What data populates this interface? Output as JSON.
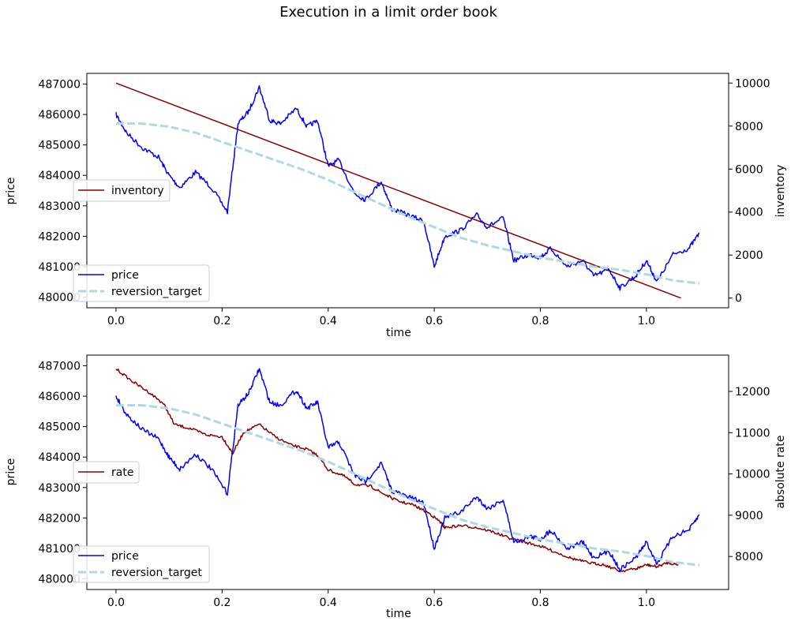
{
  "figure": {
    "suptitle": "Execution in a limit order book"
  },
  "chart_data": [
    {
      "type": "line",
      "xlabel": "time",
      "ylabel_left": "price",
      "ylabel_right": "inventory",
      "xlim": [
        -0.055,
        1.155
      ],
      "xticks": [
        "0.0",
        "0.2",
        "0.4",
        "0.6",
        "0.8",
        "1.0"
      ],
      "left_ylim": [
        479650,
        487350
      ],
      "left_yticks": [
        "480000",
        "481000",
        "482000",
        "483000",
        "484000",
        "485000",
        "486000",
        "487000"
      ],
      "right_ylim": [
        -450,
        10450
      ],
      "right_yticks": [
        "0",
        "2000",
        "4000",
        "6000",
        "8000",
        "10000"
      ],
      "legend_left": [
        "price",
        "reversion_target"
      ],
      "legend_right": [
        "inventory"
      ],
      "legend_left_loc": "lower left",
      "legend_right_loc": "center left",
      "colors": {
        "price": "#0000ff",
        "reversion_target": "#add8e6",
        "inventory": "#8b0000"
      },
      "series": [
        {
          "name": "price",
          "axis": "left",
          "x": [
            0.0,
            0.02,
            0.05,
            0.08,
            0.1,
            0.12,
            0.15,
            0.18,
            0.21,
            0.23,
            0.25,
            0.27,
            0.29,
            0.31,
            0.34,
            0.36,
            0.38,
            0.4,
            0.42,
            0.45,
            0.47,
            0.5,
            0.52,
            0.55,
            0.58,
            0.6,
            0.62,
            0.65,
            0.68,
            0.7,
            0.73,
            0.75,
            0.78,
            0.8,
            0.82,
            0.85,
            0.88,
            0.9,
            0.93,
            0.95,
            0.98,
            1.0,
            1.02,
            1.05,
            1.08,
            1.1
          ],
          "y": [
            486000,
            485400,
            484900,
            484600,
            484000,
            483600,
            484100,
            483600,
            482800,
            485700,
            486100,
            486900,
            485800,
            485700,
            486200,
            485600,
            485800,
            484300,
            484500,
            483400,
            483200,
            483800,
            482900,
            482700,
            482500,
            481000,
            482000,
            482200,
            482700,
            482300,
            482600,
            481200,
            481400,
            481300,
            481600,
            481000,
            481200,
            480700,
            480900,
            480300,
            480700,
            481200,
            480500,
            481400,
            481600,
            482100
          ]
        },
        {
          "name": "reversion_target",
          "axis": "left",
          "x": [
            0.0,
            0.05,
            0.1,
            0.15,
            0.2,
            0.25,
            0.3,
            0.35,
            0.4,
            0.45,
            0.5,
            0.55,
            0.6,
            0.65,
            0.7,
            0.75,
            0.8,
            0.85,
            0.9,
            0.95,
            1.0,
            1.05,
            1.1
          ],
          "y": [
            485700,
            485700,
            485600,
            485400,
            485100,
            484800,
            484500,
            484200,
            483850,
            483450,
            483050,
            482650,
            482300,
            481950,
            481700,
            481500,
            481300,
            481150,
            481000,
            480900,
            480750,
            480550,
            480450
          ]
        },
        {
          "name": "inventory",
          "axis": "right",
          "x": [
            0.0,
            1.065
          ],
          "y": [
            10000,
            0
          ]
        }
      ]
    },
    {
      "type": "line",
      "xlabel": "time",
      "ylabel_left": "price",
      "ylabel_right": "absolute rate",
      "xlim": [
        -0.055,
        1.155
      ],
      "xticks": [
        "0.0",
        "0.2",
        "0.4",
        "0.6",
        "0.8",
        "1.0"
      ],
      "left_ylim": [
        479650,
        487350
      ],
      "left_yticks": [
        "480000",
        "481000",
        "482000",
        "483000",
        "484000",
        "485000",
        "486000",
        "487000"
      ],
      "right_ylim": [
        7200,
        12880
      ],
      "right_yticks": [
        "8000",
        "9000",
        "10000",
        "11000",
        "12000"
      ],
      "legend_left": [
        "price",
        "reversion_target"
      ],
      "legend_right": [
        "rate"
      ],
      "legend_left_loc": "lower left",
      "legend_right_loc": "center left",
      "colors": {
        "price": "#0000ff",
        "reversion_target": "#add8e6",
        "rate": "#8b0000"
      },
      "series": [
        {
          "name": "price",
          "axis": "left",
          "x": [
            0.0,
            0.02,
            0.05,
            0.08,
            0.1,
            0.12,
            0.15,
            0.18,
            0.21,
            0.23,
            0.25,
            0.27,
            0.29,
            0.31,
            0.34,
            0.36,
            0.38,
            0.4,
            0.42,
            0.45,
            0.47,
            0.5,
            0.52,
            0.55,
            0.58,
            0.6,
            0.62,
            0.65,
            0.68,
            0.7,
            0.73,
            0.75,
            0.78,
            0.8,
            0.82,
            0.85,
            0.88,
            0.9,
            0.93,
            0.95,
            0.98,
            1.0,
            1.02,
            1.05,
            1.08,
            1.1
          ],
          "y": [
            486000,
            485400,
            484900,
            484600,
            484000,
            483600,
            484100,
            483600,
            482800,
            485700,
            486100,
            486900,
            485800,
            485700,
            486200,
            485600,
            485800,
            484300,
            484500,
            483400,
            483200,
            483800,
            482900,
            482700,
            482500,
            481000,
            482000,
            482200,
            482700,
            482300,
            482600,
            481200,
            481400,
            481300,
            481600,
            481000,
            481200,
            480700,
            480900,
            480300,
            480700,
            481200,
            480500,
            481400,
            481600,
            482100
          ]
        },
        {
          "name": "reversion_target",
          "axis": "left",
          "x": [
            0.0,
            0.05,
            0.1,
            0.15,
            0.2,
            0.25,
            0.3,
            0.35,
            0.4,
            0.45,
            0.5,
            0.55,
            0.6,
            0.65,
            0.7,
            0.75,
            0.8,
            0.85,
            0.9,
            0.95,
            1.0,
            1.05,
            1.1
          ],
          "y": [
            485700,
            485700,
            485600,
            485400,
            485100,
            484800,
            484500,
            484200,
            483850,
            483450,
            483050,
            482650,
            482300,
            481950,
            481700,
            481500,
            481300,
            481150,
            481000,
            480900,
            480750,
            480550,
            480450
          ]
        },
        {
          "name": "rate",
          "axis": "right",
          "x": [
            0.0,
            0.03,
            0.06,
            0.09,
            0.11,
            0.14,
            0.17,
            0.2,
            0.22,
            0.24,
            0.27,
            0.3,
            0.33,
            0.36,
            0.38,
            0.4,
            0.43,
            0.45,
            0.48,
            0.5,
            0.53,
            0.56,
            0.59,
            0.61,
            0.62,
            0.65,
            0.68,
            0.71,
            0.74,
            0.77,
            0.8,
            0.83,
            0.86,
            0.89,
            0.92,
            0.95,
            0.98,
            1.0,
            1.02,
            1.04,
            1.06
          ],
          "y": [
            12550,
            12250,
            12000,
            11700,
            11200,
            11100,
            10950,
            10900,
            10500,
            11000,
            11200,
            10900,
            10700,
            10600,
            10450,
            10100,
            9950,
            9750,
            9700,
            9550,
            9350,
            9250,
            9050,
            8850,
            8700,
            8750,
            8700,
            8600,
            8450,
            8350,
            8250,
            8100,
            7950,
            7850,
            7800,
            7650,
            7700,
            7800,
            7750,
            7850,
            7800
          ]
        }
      ]
    }
  ]
}
